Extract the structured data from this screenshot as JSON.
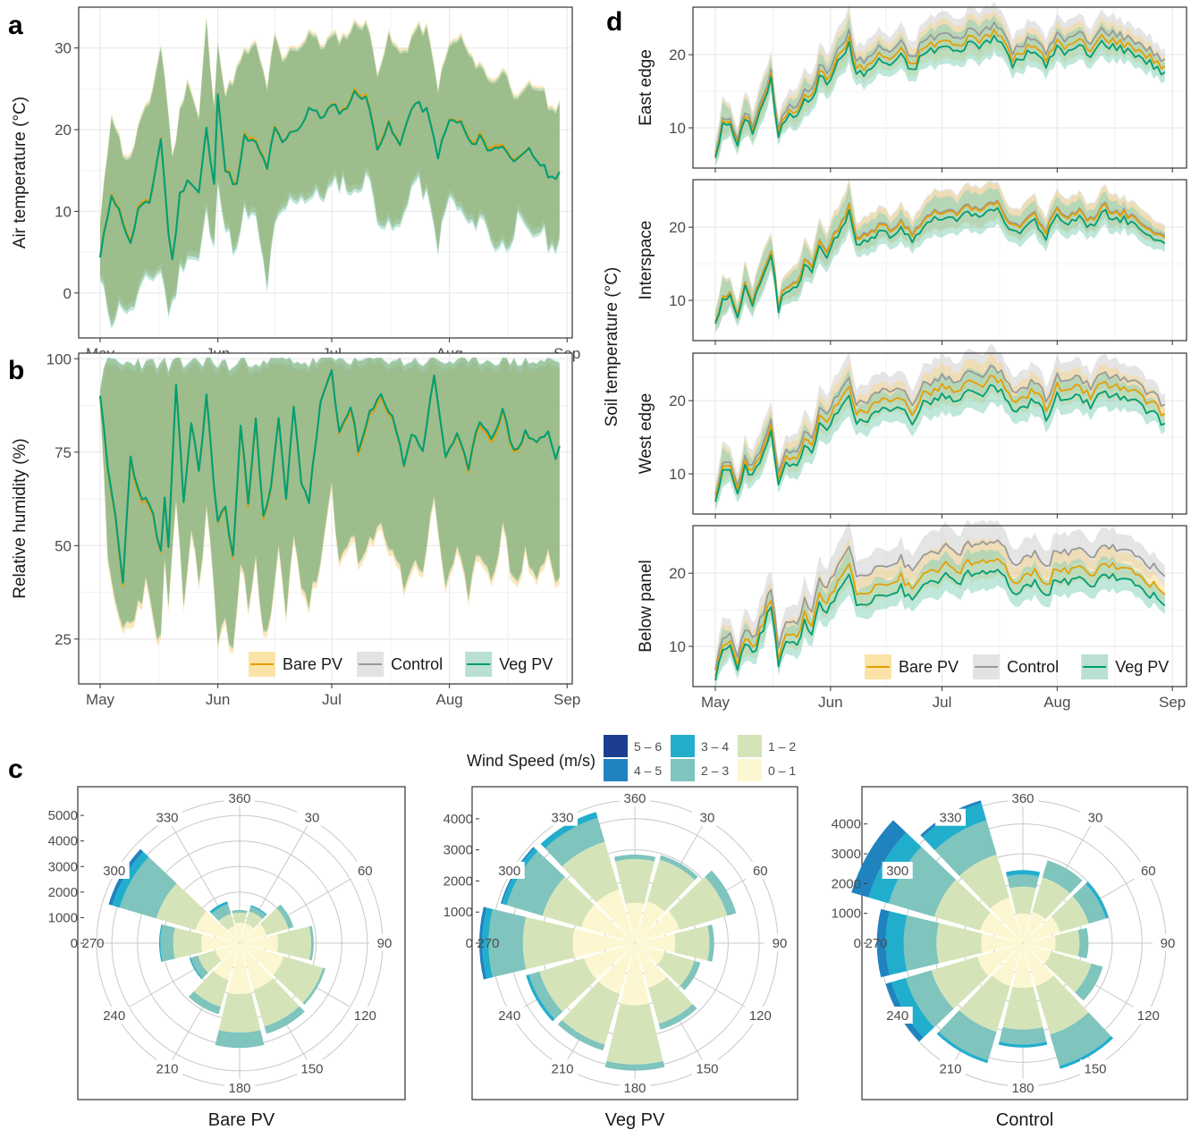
{
  "panel_labels": {
    "a": "a",
    "b": "b",
    "c": "c",
    "d": "d"
  },
  "colors": {
    "Bare PV": "#E69F00",
    "Control": "#999999",
    "Veg PV": "#009E73"
  },
  "legend": {
    "items": [
      "Bare PV",
      "Control",
      "Veg PV"
    ]
  },
  "wind_legend": {
    "title": "Wind Speed (m/s)",
    "bins": [
      {
        "label": "5 – 6",
        "color": "#1B3F8E"
      },
      {
        "label": "4 – 5",
        "color": "#1F83BF"
      },
      {
        "label": "3 – 4",
        "color": "#21AECD"
      },
      {
        "label": "2 – 3",
        "color": "#7FC4BD"
      },
      {
        "label": "1 – 2",
        "color": "#D5E4B8"
      },
      {
        "label": "0 – 1",
        "color": "#FCF7D1"
      }
    ]
  },
  "chart_data": [
    {
      "id": "a",
      "type": "line",
      "ylabel": "Air temperature (°C)",
      "ylim": [
        -5.5,
        35
      ],
      "yticks": [
        0,
        10,
        20,
        30
      ],
      "xticks": [
        "May",
        "Jun",
        "Jul",
        "Aug",
        "Sep"
      ],
      "x_start": "May 1",
      "x_end": "Aug 31",
      "series": [
        {
          "name": "Veg PV",
          "anchors_day": [
            0,
            3,
            6,
            8,
            10,
            13,
            16,
            18,
            19,
            21,
            23,
            26,
            28,
            30,
            31,
            33,
            36,
            38,
            41,
            44,
            46,
            48,
            51,
            53,
            55,
            58,
            61,
            64,
            67,
            70,
            73,
            76,
            79,
            81,
            83,
            86,
            89,
            92,
            95,
            98,
            100,
            102,
            104,
            107,
            110,
            113,
            116,
            119,
            122
          ],
          "mean": [
            4.2,
            12.3,
            8.8,
            5.8,
            10.2,
            11.0,
            18.9,
            7.5,
            3.8,
            12.0,
            14.0,
            12.2,
            20.0,
            13.0,
            24.8,
            15.0,
            13.1,
            19.0,
            18.2,
            15.4,
            20.0,
            18.3,
            20.0,
            20.5,
            22.8,
            21.5,
            22.8,
            22.2,
            24.4,
            24.1,
            18.0,
            20.5,
            17.9,
            21.6,
            23.2,
            22.3,
            16.9,
            21.1,
            20.8,
            17.8,
            19.5,
            17.4,
            18.0,
            17.6,
            16.0,
            17.4,
            15.8,
            14.0,
            15.4
          ],
          "lower": [
            1.5,
            -3.0,
            -1.0,
            -2.5,
            0.0,
            2.0,
            3.0,
            -2.0,
            -1.5,
            3.0,
            5.0,
            4.0,
            10.0,
            5.0,
            15.0,
            8.0,
            5.0,
            10.0,
            9.0,
            1.0,
            8.0,
            10.0,
            12.0,
            12.0,
            12.0,
            12.0,
            13.0,
            14.0,
            12.0,
            15.0,
            10.0,
            8.0,
            8.0,
            12.0,
            14.0,
            12.0,
            6.0,
            12.0,
            10.0,
            8.0,
            10.0,
            8.0,
            6.0,
            6.0,
            9.0,
            7.0,
            8.0,
            5.5,
            8.0
          ],
          "upper": [
            8.0,
            22.0,
            17.0,
            16.0,
            20.0,
            23.0,
            30.0,
            22.0,
            16.0,
            22.0,
            26.0,
            21.0,
            33.0,
            22.0,
            31.0,
            24.0,
            27.0,
            29.0,
            30.0,
            25.0,
            31.0,
            28.0,
            30.0,
            30.0,
            32.0,
            30.0,
            31.0,
            31.0,
            32.5,
            33.0,
            27.0,
            31.0,
            29.0,
            30.0,
            32.0,
            32.0,
            25.0,
            30.0,
            31.0,
            28.0,
            28.0,
            26.0,
            26.0,
            27.0,
            23.0,
            25.0,
            25.0,
            22.0,
            24.0
          ]
        },
        {
          "name": "Bare PV",
          "offset": 0.3
        },
        {
          "name": "Control",
          "offset": 0.15
        }
      ]
    },
    {
      "id": "b",
      "type": "line",
      "ylabel": "Relative humidity (%)",
      "ylim": [
        13,
        101.5
      ],
      "yticks": [
        25,
        50,
        75,
        100
      ],
      "xticks": [
        "May",
        "Jun",
        "Jul",
        "Aug",
        "Sep"
      ],
      "x_start": "May 1",
      "x_end": "Aug 31",
      "series": [
        {
          "name": "Veg PV",
          "anchors_day": [
            0,
            2,
            4,
            6,
            8,
            10,
            12,
            14,
            16,
            17,
            18,
            20,
            22,
            24,
            26,
            28,
            30,
            31,
            33,
            35,
            37,
            39,
            41,
            43,
            45,
            47,
            49,
            51,
            53,
            55,
            58,
            61,
            63,
            66,
            68,
            71,
            74,
            77,
            80,
            82,
            85,
            88,
            91,
            94,
            97,
            100,
            103,
            106,
            109,
            112,
            115,
            118,
            120,
            122
          ],
          "mean": [
            91.0,
            70.0,
            58.0,
            40.0,
            74.0,
            65.0,
            62.0,
            58.0,
            48.0,
            62.0,
            50.0,
            92.0,
            62.0,
            83.0,
            70.0,
            90.0,
            66.0,
            57.0,
            60.0,
            47.0,
            82.0,
            62.0,
            85.0,
            57.0,
            65.0,
            84.0,
            62.0,
            88.0,
            67.0,
            62.0,
            88.0,
            96.0,
            80.0,
            88.0,
            75.0,
            85.0,
            90.0,
            85.0,
            72.0,
            80.0,
            76.0,
            95.0,
            74.0,
            80.0,
            70.0,
            84.0,
            79.0,
            86.0,
            75.0,
            80.0,
            78.0,
            80.0,
            73.0,
            81.0
          ],
          "lower": [
            90.0,
            45.0,
            35.0,
            28.0,
            30.0,
            35.0,
            40.0,
            30.0,
            25.0,
            45.0,
            35.0,
            60.0,
            35.0,
            55.0,
            40.0,
            60.0,
            40.0,
            25.0,
            30.0,
            22.0,
            45.0,
            35.0,
            50.0,
            25.0,
            30.0,
            50.0,
            30.0,
            55.0,
            40.0,
            35.0,
            45.0,
            65.0,
            45.0,
            55.0,
            45.0,
            50.0,
            55.0,
            50.0,
            40.0,
            45.0,
            45.0,
            62.0,
            40.0,
            50.0,
            35.0,
            50.0,
            42.0,
            55.0,
            40.0,
            48.0,
            42.0,
            48.0,
            40.0,
            45.0
          ],
          "upper": [
            93.0,
            99.0,
            99.5,
            98.0,
            99.0,
            99.5,
            98.0,
            99.0,
            98.0,
            99.0,
            97.0,
            99.8,
            98.0,
            99.8,
            99.0,
            99.8,
            99.0,
            98.0,
            99.0,
            97.0,
            99.8,
            99.0,
            99.8,
            98.0,
            99.0,
            99.8,
            99.0,
            99.8,
            99.0,
            98.5,
            99.8,
            99.9,
            99.5,
            99.8,
            99.0,
            99.8,
            99.9,
            99.8,
            99.0,
            99.5,
            99.0,
            99.9,
            99.0,
            99.5,
            98.5,
            99.8,
            99.5,
            99.8,
            99.0,
            99.5,
            99.0,
            99.5,
            99.0,
            99.5
          ]
        },
        {
          "name": "Bare PV",
          "offset": -1.0
        },
        {
          "name": "Control",
          "offset": -0.5
        }
      ]
    },
    {
      "id": "d",
      "type": "line",
      "ylabel": "Soil temperature (°C)",
      "ylim": [
        4.5,
        26.5
      ],
      "yticks": [
        10,
        20
      ],
      "xticks": [
        "May",
        "Jun",
        "Jul",
        "Aug",
        "Sep"
      ],
      "x_start": "May 1",
      "x_end": "Aug 31",
      "base_anchors_day": [
        0,
        2,
        4,
        6,
        8,
        10,
        13,
        15,
        17,
        19,
        22,
        24,
        26,
        28,
        30,
        32,
        34,
        36,
        38,
        41,
        44,
        47,
        50,
        53,
        56,
        59,
        62,
        65,
        68,
        71,
        74,
        77,
        80,
        83,
        86,
        89,
        92,
        95,
        98,
        101,
        104,
        107,
        110,
        113,
        116,
        119,
        122
      ],
      "base_temp": [
        6.5,
        10.5,
        11.0,
        7.5,
        12.0,
        10.0,
        14.0,
        17.0,
        9.0,
        12.0,
        12.5,
        15.0,
        14.0,
        18.0,
        16.5,
        19.0,
        20.0,
        22.5,
        18.0,
        18.5,
        20.0,
        19.5,
        20.5,
        18.5,
        21.0,
        21.5,
        22.0,
        21.0,
        22.5,
        22.0,
        23.0,
        22.5,
        19.5,
        20.5,
        21.5,
        19.0,
        22.0,
        21.0,
        22.0,
        20.5,
        22.5,
        22.0,
        21.5,
        21.0,
        20.0,
        19.0,
        17.5
      ],
      "base_band": [
        1.5,
        3.0,
        2.0,
        1.5,
        3.0,
        2.0,
        3.0,
        2.5,
        1.5,
        2.0,
        2.5,
        3.0,
        2.0,
        3.0,
        2.5,
        3.0,
        3.0,
        3.5,
        2.0,
        2.5,
        2.5,
        2.0,
        2.5,
        2.0,
        2.5,
        3.0,
        3.0,
        2.5,
        3.0,
        3.0,
        3.0,
        2.5,
        2.0,
        2.5,
        2.5,
        2.0,
        2.5,
        2.5,
        2.5,
        2.0,
        2.5,
        2.5,
        2.0,
        2.0,
        2.0,
        1.5,
        1.5
      ],
      "facets": [
        {
          "label": "East edge",
          "offsets": {
            "Bare PV": 0.0,
            "Control": 1.0,
            "Veg PV": -0.8
          }
        },
        {
          "label": "Interspace",
          "offsets": {
            "Bare PV": 0.3,
            "Control": 0.5,
            "Veg PV": -0.5
          }
        },
        {
          "label": "West edge",
          "offsets": {
            "Bare PV": 0.0,
            "Control": 1.3,
            "Veg PV": -1.3
          }
        },
        {
          "label": "Below panel",
          "offsets": {
            "Bare PV": -1.0,
            "Control": 1.5,
            "Veg PV": -2.5
          }
        }
      ]
    },
    {
      "id": "c",
      "type": "wind-rose",
      "direction_ticks": [
        "360",
        "30",
        "60",
        "90",
        "120",
        "150",
        "180",
        "210",
        "240",
        "270",
        "300",
        "330"
      ],
      "direction_bins_deg": [
        0,
        30,
        60,
        90,
        120,
        150,
        180,
        210,
        240,
        270,
        300,
        330
      ],
      "speed_bins": [
        "0 – 1",
        "1 – 2",
        "2 – 3",
        "3 – 4",
        "4 – 5",
        "5 – 6"
      ],
      "roses": [
        {
          "title": "Bare PV",
          "rmax": 5600,
          "ticks": [
            "0",
            "1000",
            "2000",
            "3000",
            "4000",
            "5000"
          ],
          "counts": [
            [
              800,
              400,
              100,
              0,
              0,
              0
            ],
            [
              800,
              500,
              200,
              50,
              0,
              0
            ],
            [
              1100,
              900,
              200,
              0,
              0,
              0
            ],
            [
              1500,
              1300,
              100,
              0,
              0,
              0
            ],
            [
              1800,
              1600,
              100,
              0,
              0,
              0
            ],
            [
              1900,
              1500,
              300,
              0,
              0,
              0
            ],
            [
              2000,
              1500,
              600,
              0,
              0,
              0
            ],
            [
              1500,
              1100,
              300,
              0,
              0,
              0
            ],
            [
              1000,
              700,
              300,
              50,
              0,
              0
            ],
            [
              1500,
              1100,
              500,
              50,
              0,
              0
            ],
            [
              1800,
              1600,
              1500,
              300,
              150,
              0
            ],
            [
              700,
              500,
              400,
              100,
              0,
              0
            ]
          ]
        },
        {
          "title": "Veg PV",
          "rmax": 4600,
          "ticks": [
            "0",
            "1000",
            "2000",
            "3000",
            "4000"
          ],
          "counts": [
            [
              1300,
              1400,
              150,
              0,
              0,
              0
            ],
            [
              1400,
              1400,
              150,
              0,
              0,
              0
            ],
            [
              1500,
              1600,
              300,
              0,
              0,
              0
            ],
            [
              1300,
              1100,
              150,
              0,
              0,
              0
            ],
            [
              1000,
              1000,
              200,
              0,
              0,
              0
            ],
            [
              1500,
              1200,
              200,
              0,
              0,
              0
            ],
            [
              2000,
              1900,
              200,
              0,
              0,
              0
            ],
            [
              1700,
              1700,
              200,
              0,
              0,
              0
            ],
            [
              1700,
              1500,
              350,
              100,
              0,
              0
            ],
            [
              2000,
              1600,
              1100,
              200,
              100,
              0
            ],
            [
              1800,
              1300,
              1200,
              150,
              50,
              0
            ],
            [
              1800,
              1600,
              800,
              200,
              0,
              0
            ]
          ]
        },
        {
          "title": "Control",
          "rmax": 4800,
          "ticks": [
            "0",
            "1000",
            "2000",
            "3000",
            "4000"
          ],
          "counts": [
            [
              1000,
              900,
              400,
              150,
              0,
              0
            ],
            [
              1100,
              1200,
              600,
              0,
              0,
              0
            ],
            [
              1300,
              1000,
              600,
              100,
              0,
              0
            ],
            [
              1100,
              800,
              300,
              0,
              0,
              0
            ],
            [
              1000,
              1400,
              400,
              0,
              0,
              0
            ],
            [
              1500,
              1700,
              1100,
              100,
              0,
              0
            ],
            [
              1500,
              1400,
              500,
              100,
              0,
              0
            ],
            [
              1500,
              1600,
              1000,
              100,
              0,
              0
            ],
            [
              1600,
              1600,
              900,
              500,
              200,
              0
            ],
            [
              1400,
              1500,
              1100,
              600,
              300,
              0
            ],
            [
              1500,
              1600,
              1600,
              700,
              600,
              0
            ],
            [
              1600,
              1500,
              1200,
              600,
              100,
              0
            ]
          ]
        }
      ]
    }
  ]
}
